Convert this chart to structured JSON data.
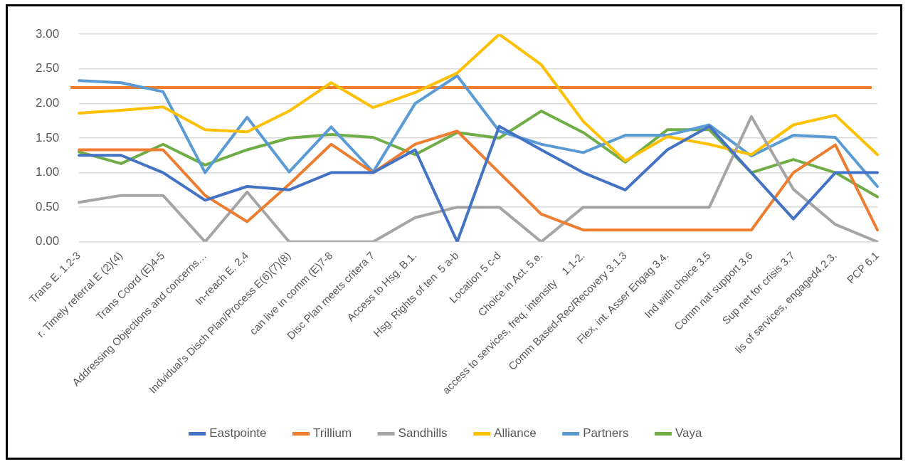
{
  "chart_data": {
    "type": "line",
    "categories": [
      "Trans E. 1.2-3",
      "r. Timely referral E (2)(4)",
      "Trans Coord (E)4-5",
      "Addressing Objections and concerns…",
      "In-reach E. 2,4",
      "Indvidual's Disch Plan/Process E(6)(7)(8)",
      "can live in comm (E)7-8",
      "Disc Plan meets critera 7",
      "Access to Hsg. B.1.",
      "Hsg. Rights of ten  5 a-b",
      "Location 5 c-d",
      "Choice in Act. 5.e.",
      "access to services, freq, intensity    1.1-2.",
      "Comm Based-Rec/Recovery 3.1.3",
      "Flex, int. Asser Engag 3.4.",
      "Ind with choice 3.5",
      "Comm nat support 3.6",
      "Sup net for crisis 3.7",
      "lis of services, engaged4.2.3.",
      "PCP 6.1"
    ],
    "series": [
      {
        "name": "Eastpointe",
        "color": "#4472c4",
        "values": [
          1.25,
          1.25,
          1.0,
          0.6,
          0.8,
          0.75,
          1.0,
          1.0,
          1.33,
          0.0,
          1.67,
          1.33,
          1.0,
          0.75,
          1.33,
          1.67,
          1.0,
          0.33,
          1.0,
          1.0
        ]
      },
      {
        "name": "Trillium",
        "color": "#ed7d31",
        "values": [
          1.33,
          1.33,
          1.33,
          0.67,
          0.29,
          0.83,
          1.41,
          1.0,
          1.41,
          1.6,
          1.0,
          0.4,
          0.17,
          0.17,
          0.17,
          0.17,
          0.17,
          1.0,
          1.4,
          0.17
        ]
      },
      {
        "name": "Sandhills",
        "color": "#a5a5a5",
        "values": [
          0.57,
          0.67,
          0.67,
          0,
          0.72,
          0,
          0,
          0,
          0.35,
          0.5,
          0.5,
          0,
          0.5,
          0.5,
          0.5,
          0.5,
          1.81,
          0.76,
          0.25,
          0
        ]
      },
      {
        "name": "Alliance",
        "color": "#ffc000",
        "values": [
          1.86,
          1.9,
          1.95,
          1.62,
          1.59,
          1.89,
          2.3,
          1.94,
          2.16,
          2.44,
          3.0,
          2.56,
          1.74,
          1.17,
          1.52,
          1.41,
          1.26,
          1.69,
          1.83,
          1.26
        ]
      },
      {
        "name": "Partners",
        "color": "#5b9bd5",
        "values": [
          2.33,
          2.3,
          2.17,
          1.0,
          1.8,
          1.01,
          1.66,
          1.01,
          2.0,
          2.4,
          1.6,
          1.41,
          1.29,
          1.54,
          1.54,
          1.69,
          1.24,
          1.54,
          1.51,
          0.8
        ]
      },
      {
        "name": "Vaya",
        "color": "#70ad47",
        "values": [
          1.3,
          1.13,
          1.41,
          1.11,
          1.33,
          1.5,
          1.55,
          1.51,
          1.26,
          1.58,
          1.5,
          1.89,
          1.58,
          1.15,
          1.62,
          1.62,
          1.0,
          1.19,
          1.0,
          0.65
        ]
      }
    ],
    "ylim": [
      0,
      3
    ],
    "yticks": [
      {
        "value": 0,
        "label": "0.00"
      },
      {
        "value": 0.5,
        "label": "0.50"
      },
      {
        "value": 1,
        "label": "1.00"
      },
      {
        "value": 1.5,
        "label": "1.50"
      },
      {
        "value": 2,
        "label": "2.00"
      },
      {
        "value": 2.5,
        "label": "2.50"
      },
      {
        "value": 3,
        "label": "3.00"
      }
    ],
    "ref_lines": [
      {
        "axis": "y",
        "value": 2.23,
        "color": "#ed7d31"
      }
    ],
    "grid": "y",
    "legend": "bottom",
    "marker": "none",
    "line_style": "solid"
  }
}
